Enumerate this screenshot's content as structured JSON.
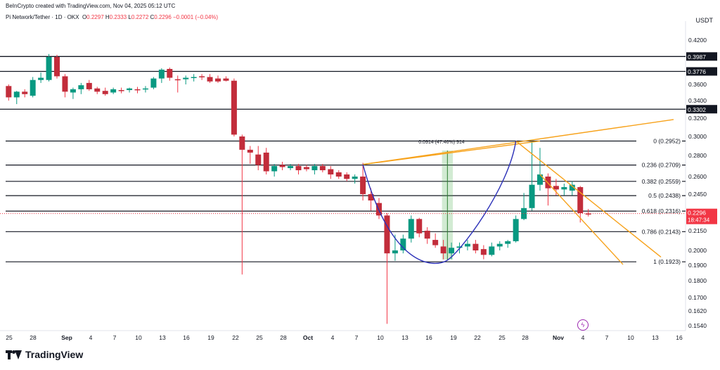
{
  "header": {
    "created_by": "BeInCrypto created with TradingView.com, Nov 04, 2025 05:12 UTC",
    "symbol": "Pi Network/Tether · 1D · OKX",
    "o_label": "O",
    "o_value": "0.2297",
    "h_label": "H",
    "h_value": "0.2333",
    "l_label": "L",
    "l_value": "0.2272",
    "c_label": "C",
    "c_value": "0.2296",
    "change": "−0.0001 (−0.04%)"
  },
  "currency": "USDT",
  "footer": {
    "brand": "TradingView"
  },
  "icons": {
    "event": "lightning-icon",
    "logo": "tradingview-logo-icon"
  },
  "colors": {
    "up": "#089981",
    "down": "#f23645",
    "downBody": "#c22d3b",
    "trend": "#f7a21b",
    "cup": "#2b30b8",
    "green_zone": "#4caf50"
  },
  "chart_data": {
    "type": "candlestick",
    "price_axis": [
      "0.4200",
      "0.4000",
      "0.3800",
      "0.3600",
      "0.3400",
      "0.3200",
      "0.3000",
      "0.2800",
      "0.2600",
      "0.2450",
      "0.2300",
      "0.2150",
      "0.2000",
      "0.1900",
      "0.1800",
      "0.1700",
      "0.1620",
      "0.1540"
    ],
    "x_ticks": [
      "25",
      "28",
      "Sep",
      "4",
      "7",
      "10",
      "13",
      "16",
      "19",
      "22",
      "25",
      "28",
      "Oct",
      "4",
      "7",
      "10",
      "13",
      "16",
      "19",
      "22",
      "25",
      "28",
      "Nov",
      "4",
      "7",
      "10",
      "13",
      "16"
    ],
    "x_ticks_bold": [
      "Sep",
      "Oct",
      "Nov"
    ],
    "price_labels": [
      {
        "text": "0.3987",
        "value": 0.3987
      },
      {
        "text": "0.3776",
        "value": 0.3776
      },
      {
        "text": "0.3302",
        "value": 0.3302
      }
    ],
    "current_price": {
      "value": 0.2296,
      "text": "0.2296",
      "countdown": "18:47:34"
    },
    "fib_levels": [
      {
        "text": "0 (0.2952)",
        "value": 0.2952
      },
      {
        "text": "0.236 (0.2709)",
        "value": 0.2709
      },
      {
        "text": "0.382 (0.2559)",
        "value": 0.2559
      },
      {
        "text": "0.5 (0.2438)",
        "value": 0.2438
      },
      {
        "text": "0.618 (0.2316)",
        "value": 0.2316
      },
      {
        "text": "0.786 (0.2143)",
        "value": 0.2143
      },
      {
        "text": "1 (0.1923)",
        "value": 0.1923
      }
    ],
    "measure_label": "0.0914 (47.46%) 914",
    "candles": [
      {
        "d": "Aug 24",
        "o": 0.358,
        "h": 0.36,
        "l": 0.34,
        "c": 0.344
      },
      {
        "d": "Aug 25",
        "o": 0.344,
        "h": 0.352,
        "l": 0.336,
        "c": 0.351
      },
      {
        "d": "Aug 26",
        "o": 0.351,
        "h": 0.354,
        "l": 0.344,
        "c": 0.348
      },
      {
        "d": "Aug 27",
        "o": 0.346,
        "h": 0.37,
        "l": 0.344,
        "c": 0.366
      },
      {
        "d": "Aug 28",
        "o": 0.366,
        "h": 0.376,
        "l": 0.362,
        "c": 0.369
      },
      {
        "d": "Aug 29",
        "o": 0.366,
        "h": 0.402,
        "l": 0.364,
        "c": 0.398
      },
      {
        "d": "Aug 30",
        "o": 0.398,
        "h": 0.401,
        "l": 0.368,
        "c": 0.371
      },
      {
        "d": "Aug 31",
        "o": 0.371,
        "h": 0.374,
        "l": 0.344,
        "c": 0.351
      },
      {
        "d": "Sep 1",
        "o": 0.35,
        "h": 0.356,
        "l": 0.342,
        "c": 0.354
      },
      {
        "d": "Sep 2",
        "o": 0.354,
        "h": 0.362,
        "l": 0.348,
        "c": 0.359
      },
      {
        "d": "Sep 3",
        "o": 0.362,
        "h": 0.366,
        "l": 0.352,
        "c": 0.354
      },
      {
        "d": "Sep 4",
        "o": 0.355,
        "h": 0.357,
        "l": 0.348,
        "c": 0.351
      },
      {
        "d": "Sep 5",
        "o": 0.352,
        "h": 0.356,
        "l": 0.346,
        "c": 0.348
      },
      {
        "d": "Sep 6",
        "o": 0.35,
        "h": 0.356,
        "l": 0.348,
        "c": 0.354
      },
      {
        "d": "Sep 7",
        "o": 0.353,
        "h": 0.356,
        "l": 0.349,
        "c": 0.352
      },
      {
        "d": "Sep 8",
        "o": 0.353,
        "h": 0.356,
        "l": 0.35,
        "c": 0.355
      },
      {
        "d": "Sep 9",
        "o": 0.354,
        "h": 0.357,
        "l": 0.349,
        "c": 0.353
      },
      {
        "d": "Sep 10",
        "o": 0.354,
        "h": 0.358,
        "l": 0.35,
        "c": 0.355
      },
      {
        "d": "Sep 11",
        "o": 0.356,
        "h": 0.37,
        "l": 0.354,
        "c": 0.368
      },
      {
        "d": "Sep 12",
        "o": 0.368,
        "h": 0.382,
        "l": 0.362,
        "c": 0.38
      },
      {
        "d": "Sep 13",
        "o": 0.381,
        "h": 0.383,
        "l": 0.365,
        "c": 0.369
      },
      {
        "d": "Sep 14",
        "o": 0.367,
        "h": 0.372,
        "l": 0.35,
        "c": 0.366
      },
      {
        "d": "Sep 15",
        "o": 0.367,
        "h": 0.372,
        "l": 0.36,
        "c": 0.369
      },
      {
        "d": "Sep 16",
        "o": 0.369,
        "h": 0.374,
        "l": 0.364,
        "c": 0.37
      },
      {
        "d": "Sep 17",
        "o": 0.371,
        "h": 0.374,
        "l": 0.366,
        "c": 0.37
      },
      {
        "d": "Sep 18",
        "o": 0.37,
        "h": 0.374,
        "l": 0.362,
        "c": 0.364
      },
      {
        "d": "Sep 19",
        "o": 0.368,
        "h": 0.372,
        "l": 0.362,
        "c": 0.364
      },
      {
        "d": "Sep 20",
        "o": 0.368,
        "h": 0.371,
        "l": 0.364,
        "c": 0.365
      },
      {
        "d": "Sep 21",
        "o": 0.365,
        "h": 0.368,
        "l": 0.3,
        "c": 0.302
      },
      {
        "d": "Sep 22",
        "o": 0.3,
        "h": 0.302,
        "l": 0.184,
        "c": 0.286
      },
      {
        "d": "Sep 23",
        "o": 0.286,
        "h": 0.29,
        "l": 0.272,
        "c": 0.283
      },
      {
        "d": "Sep 24",
        "o": 0.281,
        "h": 0.29,
        "l": 0.266,
        "c": 0.271
      },
      {
        "d": "Sep 25",
        "o": 0.283,
        "h": 0.288,
        "l": 0.262,
        "c": 0.265
      },
      {
        "d": "Sep 26",
        "o": 0.265,
        "h": 0.272,
        "l": 0.26,
        "c": 0.27
      },
      {
        "d": "Sep 27",
        "o": 0.271,
        "h": 0.274,
        "l": 0.266,
        "c": 0.269
      },
      {
        "d": "Sep 28",
        "o": 0.268,
        "h": 0.272,
        "l": 0.266,
        "c": 0.27
      },
      {
        "d": "Sep 29",
        "o": 0.27,
        "h": 0.272,
        "l": 0.262,
        "c": 0.266
      },
      {
        "d": "Sep 30",
        "o": 0.269,
        "h": 0.271,
        "l": 0.265,
        "c": 0.267
      },
      {
        "d": "Oct 1",
        "o": 0.266,
        "h": 0.272,
        "l": 0.262,
        "c": 0.27
      },
      {
        "d": "Oct 2",
        "o": 0.27,
        "h": 0.272,
        "l": 0.264,
        "c": 0.266
      },
      {
        "d": "Oct 3",
        "o": 0.267,
        "h": 0.27,
        "l": 0.258,
        "c": 0.262
      },
      {
        "d": "Oct 4",
        "o": 0.264,
        "h": 0.266,
        "l": 0.258,
        "c": 0.26
      },
      {
        "d": "Oct 5",
        "o": 0.262,
        "h": 0.264,
        "l": 0.256,
        "c": 0.258
      },
      {
        "d": "Oct 6",
        "o": 0.258,
        "h": 0.262,
        "l": 0.254,
        "c": 0.26
      },
      {
        "d": "Oct 7",
        "o": 0.26,
        "h": 0.273,
        "l": 0.24,
        "c": 0.245
      },
      {
        "d": "Oct 8",
        "o": 0.245,
        "h": 0.25,
        "l": 0.232,
        "c": 0.24
      },
      {
        "d": "Oct 9",
        "o": 0.238,
        "h": 0.242,
        "l": 0.225,
        "c": 0.228
      },
      {
        "d": "Oct 10",
        "o": 0.228,
        "h": 0.23,
        "l": 0.155,
        "c": 0.198
      },
      {
        "d": "Oct 11",
        "o": 0.198,
        "h": 0.212,
        "l": 0.193,
        "c": 0.2
      },
      {
        "d": "Oct 12",
        "o": 0.2,
        "h": 0.212,
        "l": 0.198,
        "c": 0.209
      },
      {
        "d": "Oct 13",
        "o": 0.209,
        "h": 0.228,
        "l": 0.206,
        "c": 0.225
      },
      {
        "d": "Oct 14",
        "o": 0.225,
        "h": 0.226,
        "l": 0.21,
        "c": 0.213
      },
      {
        "d": "Oct 15",
        "o": 0.215,
        "h": 0.218,
        "l": 0.205,
        "c": 0.209
      },
      {
        "d": "Oct 16",
        "o": 0.208,
        "h": 0.213,
        "l": 0.202,
        "c": 0.204
      },
      {
        "d": "Oct 17",
        "o": 0.203,
        "h": 0.208,
        "l": 0.194,
        "c": 0.198
      },
      {
        "d": "Oct 18",
        "o": 0.198,
        "h": 0.206,
        "l": 0.194,
        "c": 0.202
      },
      {
        "d": "Oct 19",
        "o": 0.202,
        "h": 0.206,
        "l": 0.198,
        "c": 0.203
      },
      {
        "d": "Oct 20",
        "o": 0.203,
        "h": 0.208,
        "l": 0.2,
        "c": 0.205
      },
      {
        "d": "Oct 21",
        "o": 0.205,
        "h": 0.208,
        "l": 0.198,
        "c": 0.2
      },
      {
        "d": "Oct 22",
        "o": 0.201,
        "h": 0.204,
        "l": 0.194,
        "c": 0.197
      },
      {
        "d": "Oct 23",
        "o": 0.197,
        "h": 0.206,
        "l": 0.196,
        "c": 0.203
      },
      {
        "d": "Oct 24",
        "o": 0.203,
        "h": 0.207,
        "l": 0.2,
        "c": 0.205
      },
      {
        "d": "Oct 25",
        "o": 0.205,
        "h": 0.208,
        "l": 0.202,
        "c": 0.207
      },
      {
        "d": "Oct 26",
        "o": 0.207,
        "h": 0.228,
        "l": 0.206,
        "c": 0.225
      },
      {
        "d": "Oct 27",
        "o": 0.225,
        "h": 0.246,
        "l": 0.224,
        "c": 0.234
      },
      {
        "d": "Oct 28",
        "o": 0.234,
        "h": 0.295,
        "l": 0.232,
        "c": 0.253
      },
      {
        "d": "Oct 29",
        "o": 0.253,
        "h": 0.288,
        "l": 0.248,
        "c": 0.262
      },
      {
        "d": "Oct 30",
        "o": 0.26,
        "h": 0.263,
        "l": 0.236,
        "c": 0.25
      },
      {
        "d": "Oct 31",
        "o": 0.252,
        "h": 0.258,
        "l": 0.244,
        "c": 0.249
      },
      {
        "d": "Nov 1",
        "o": 0.249,
        "h": 0.254,
        "l": 0.244,
        "c": 0.251
      },
      {
        "d": "Nov 2",
        "o": 0.248,
        "h": 0.256,
        "l": 0.244,
        "c": 0.253
      },
      {
        "d": "Nov 3",
        "o": 0.251,
        "h": 0.252,
        "l": 0.222,
        "c": 0.23
      },
      {
        "d": "Nov 4",
        "o": 0.2297,
        "h": 0.2333,
        "l": 0.2272,
        "c": 0.2296
      }
    ]
  }
}
